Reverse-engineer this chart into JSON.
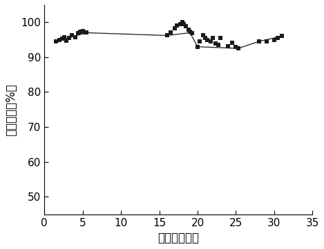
{
  "x": [
    1.5,
    2.0,
    2.3,
    2.6,
    2.9,
    3.2,
    3.6,
    4.0,
    4.4,
    4.7,
    5.0,
    5.3,
    5.5,
    16.0,
    16.5,
    17.0,
    17.3,
    17.7,
    18.0,
    18.2,
    18.5,
    18.8,
    19.0,
    19.3,
    20.0,
    20.3,
    20.7,
    21.0,
    21.3,
    21.7,
    22.0,
    22.3,
    22.7,
    23.0,
    24.0,
    24.5,
    25.0,
    25.3,
    28.0,
    29.0,
    30.0,
    30.5,
    31.0
  ],
  "y": [
    94.5,
    95.0,
    95.3,
    95.8,
    94.8,
    95.5,
    96.2,
    95.8,
    96.8,
    97.2,
    97.5,
    97.0,
    97.0,
    96.2,
    97.0,
    98.2,
    99.0,
    99.5,
    100.0,
    99.5,
    98.8,
    97.8,
    97.2,
    96.8,
    93.0,
    94.5,
    96.2,
    95.5,
    95.0,
    94.5,
    95.5,
    94.0,
    93.5,
    95.5,
    93.2,
    94.2,
    93.0,
    92.5,
    94.5,
    94.5,
    95.0,
    95.5,
    96.0
  ],
  "line_x": [
    1.5,
    5.5,
    16.0,
    19.0,
    20.0,
    25.3,
    28.0,
    31.0
  ],
  "line_y": [
    94.5,
    97.0,
    96.2,
    97.0,
    93.0,
    92.5,
    94.5,
    96.0
  ],
  "xlabel": "时间（小时）",
  "ylabel": "一氧化碳（%）",
  "xlim": [
    0,
    35
  ],
  "ylim": [
    45,
    105
  ],
  "xticks": [
    0,
    5,
    10,
    15,
    20,
    25,
    30,
    35
  ],
  "yticks": [
    50,
    60,
    70,
    80,
    90,
    100
  ],
  "marker": "s",
  "marker_color": "#1a1a1a",
  "marker_size": 22,
  "line_color": "#1a1a1a",
  "line_width": 0.9,
  "bg_color": "#ffffff",
  "xlabel_fontsize": 12,
  "ylabel_fontsize": 12,
  "tick_fontsize": 11,
  "fig_width": 4.69,
  "fig_height": 3.61,
  "dpi": 100
}
